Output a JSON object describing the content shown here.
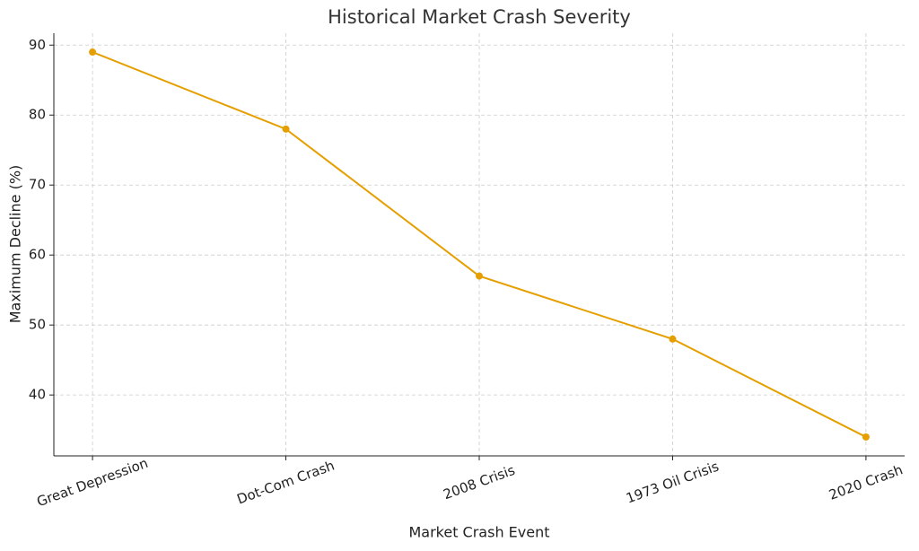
{
  "chart_data": {
    "type": "line",
    "title": "Historical Market Crash Severity",
    "x_label": "Market Crash Event",
    "y_label": "Maximum Decline (%)",
    "categories": [
      "Great Depression",
      "Dot-Com Crash",
      "2008 Crisis",
      "1973 Oil Crisis",
      "2020 Crash"
    ],
    "values": [
      89,
      78,
      57,
      48,
      34
    ],
    "color": "#e69f00",
    "ylim": [
      31.3,
      91.7
    ],
    "yticks": [
      40,
      50,
      60,
      70,
      80,
      90
    ],
    "grid": true
  }
}
